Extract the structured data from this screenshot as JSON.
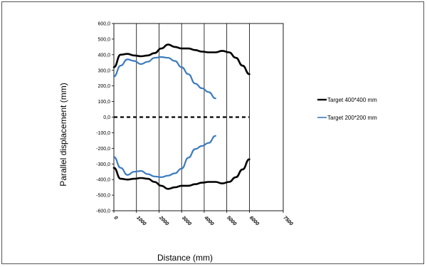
{
  "chart_data": {
    "type": "line",
    "xlabel": "Distance (mm)",
    "ylabel": "Parallel displacement (mm)",
    "xlim": [
      0,
      7500
    ],
    "ylim": [
      -600,
      600
    ],
    "x_ticks": [
      "0",
      "1000",
      "2000",
      "3000",
      "4000",
      "5000",
      "6000",
      "7500"
    ],
    "y_ticks": [
      "600,0",
      "500,0",
      "400,0",
      "300,0",
      "200,0",
      "100,0",
      "0,0",
      "-100,0",
      "-200,0",
      "-300,0",
      "-400,0",
      "-500,0",
      "-600,0"
    ],
    "grid": "vertical",
    "legend_position": "right",
    "series": [
      {
        "name": "Target 400*400 mm",
        "color": "#000000",
        "x": [
          0,
          300,
          600,
          900,
          1200,
          1500,
          1800,
          2100,
          2400,
          2700,
          3000,
          3300,
          3600,
          3900,
          4200,
          4500,
          4800,
          5100,
          5400,
          5700,
          6000
        ],
        "y": [
          320,
          400,
          405,
          395,
          390,
          395,
          410,
          440,
          465,
          450,
          440,
          440,
          430,
          420,
          415,
          415,
          425,
          415,
          380,
          330,
          275
        ]
      },
      {
        "name": "Target 400*400 mm",
        "color": "#000000",
        "x": [
          0,
          300,
          600,
          900,
          1200,
          1500,
          1800,
          2100,
          2400,
          2700,
          3000,
          3300,
          3600,
          3900,
          4200,
          4500,
          4800,
          5100,
          5400,
          5700,
          6000
        ],
        "y": [
          -325,
          -395,
          -400,
          -395,
          -390,
          -395,
          -415,
          -440,
          -460,
          -450,
          -440,
          -440,
          -430,
          -420,
          -415,
          -415,
          -425,
          -415,
          -385,
          -335,
          -270
        ]
      },
      {
        "name": "Target 200*200 mm",
        "color": "#3b7bbf",
        "x": [
          0,
          300,
          600,
          900,
          1200,
          1500,
          1800,
          2100,
          2400,
          2700,
          3000,
          3300,
          3600,
          3900,
          4200,
          4500
        ],
        "y": [
          260,
          330,
          370,
          360,
          340,
          355,
          380,
          385,
          380,
          360,
          320,
          275,
          215,
          185,
          160,
          120
        ]
      },
      {
        "name": "Target 200*200 mm",
        "color": "#3b7bbf",
        "x": [
          0,
          300,
          600,
          900,
          1200,
          1500,
          1800,
          2100,
          2400,
          2700,
          3000,
          3300,
          3600,
          3900,
          4200,
          4500
        ],
        "y": [
          -255,
          -325,
          -370,
          -350,
          -345,
          -365,
          -380,
          -385,
          -375,
          -360,
          -330,
          -260,
          -205,
          -185,
          -165,
          -120
        ]
      },
      {
        "name": "",
        "color": "#000000",
        "dashed": true,
        "x": [
          0,
          6000
        ],
        "y": [
          0,
          0
        ]
      }
    ],
    "legend": [
      {
        "label": "Target 400*400 mm",
        "color": "#000000",
        "width": 2.4
      },
      {
        "label": "Target 200*200 mm",
        "color": "#3b7bbf",
        "width": 1.6
      }
    ]
  }
}
